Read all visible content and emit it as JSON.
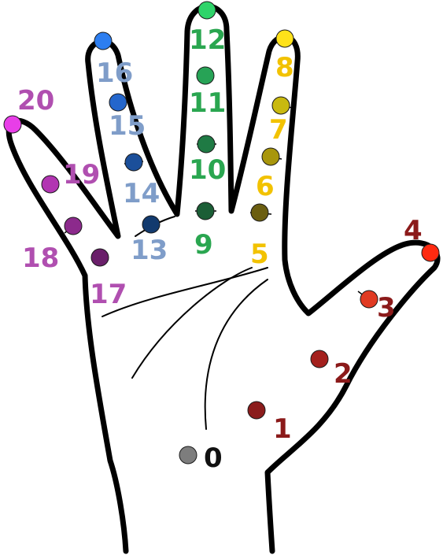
{
  "keypoints": [
    {
      "label": "0",
      "color": "#7d7d7d"
    },
    {
      "label": "1",
      "color": "#8b1c1c"
    },
    {
      "label": "2",
      "color": "#a3201d"
    },
    {
      "label": "3",
      "color": "#e03a22"
    },
    {
      "label": "4",
      "color": "#ff2a10"
    },
    {
      "label": "5",
      "color": "#6b5e10"
    },
    {
      "label": "6",
      "color": "#a8960c"
    },
    {
      "label": "7",
      "color": "#c9b90f"
    },
    {
      "label": "8",
      "color": "#ffe21a"
    },
    {
      "label": "9",
      "color": "#1b5e36"
    },
    {
      "label": "10",
      "color": "#1f7a44"
    },
    {
      "label": "11",
      "color": "#27a356"
    },
    {
      "label": "12",
      "color": "#2fd46a"
    },
    {
      "label": "13",
      "color": "#123a6e"
    },
    {
      "label": "14",
      "color": "#1b4f9a"
    },
    {
      "label": "15",
      "color": "#2466cc"
    },
    {
      "label": "16",
      "color": "#2d7ef0"
    },
    {
      "label": "17",
      "color": "#6a1f6a"
    },
    {
      "label": "18",
      "color": "#8c2a8c"
    },
    {
      "label": "19",
      "color": "#b235b2"
    },
    {
      "label": "20",
      "color": "#e83ee8"
    }
  ],
  "label_colors": {
    "wrist": "#111111",
    "thumb": "#8b1a1a",
    "index": "#f2c200",
    "middle": "#2aa650",
    "ring": "#7f9dc9",
    "pinky": "#b04fb0"
  }
}
